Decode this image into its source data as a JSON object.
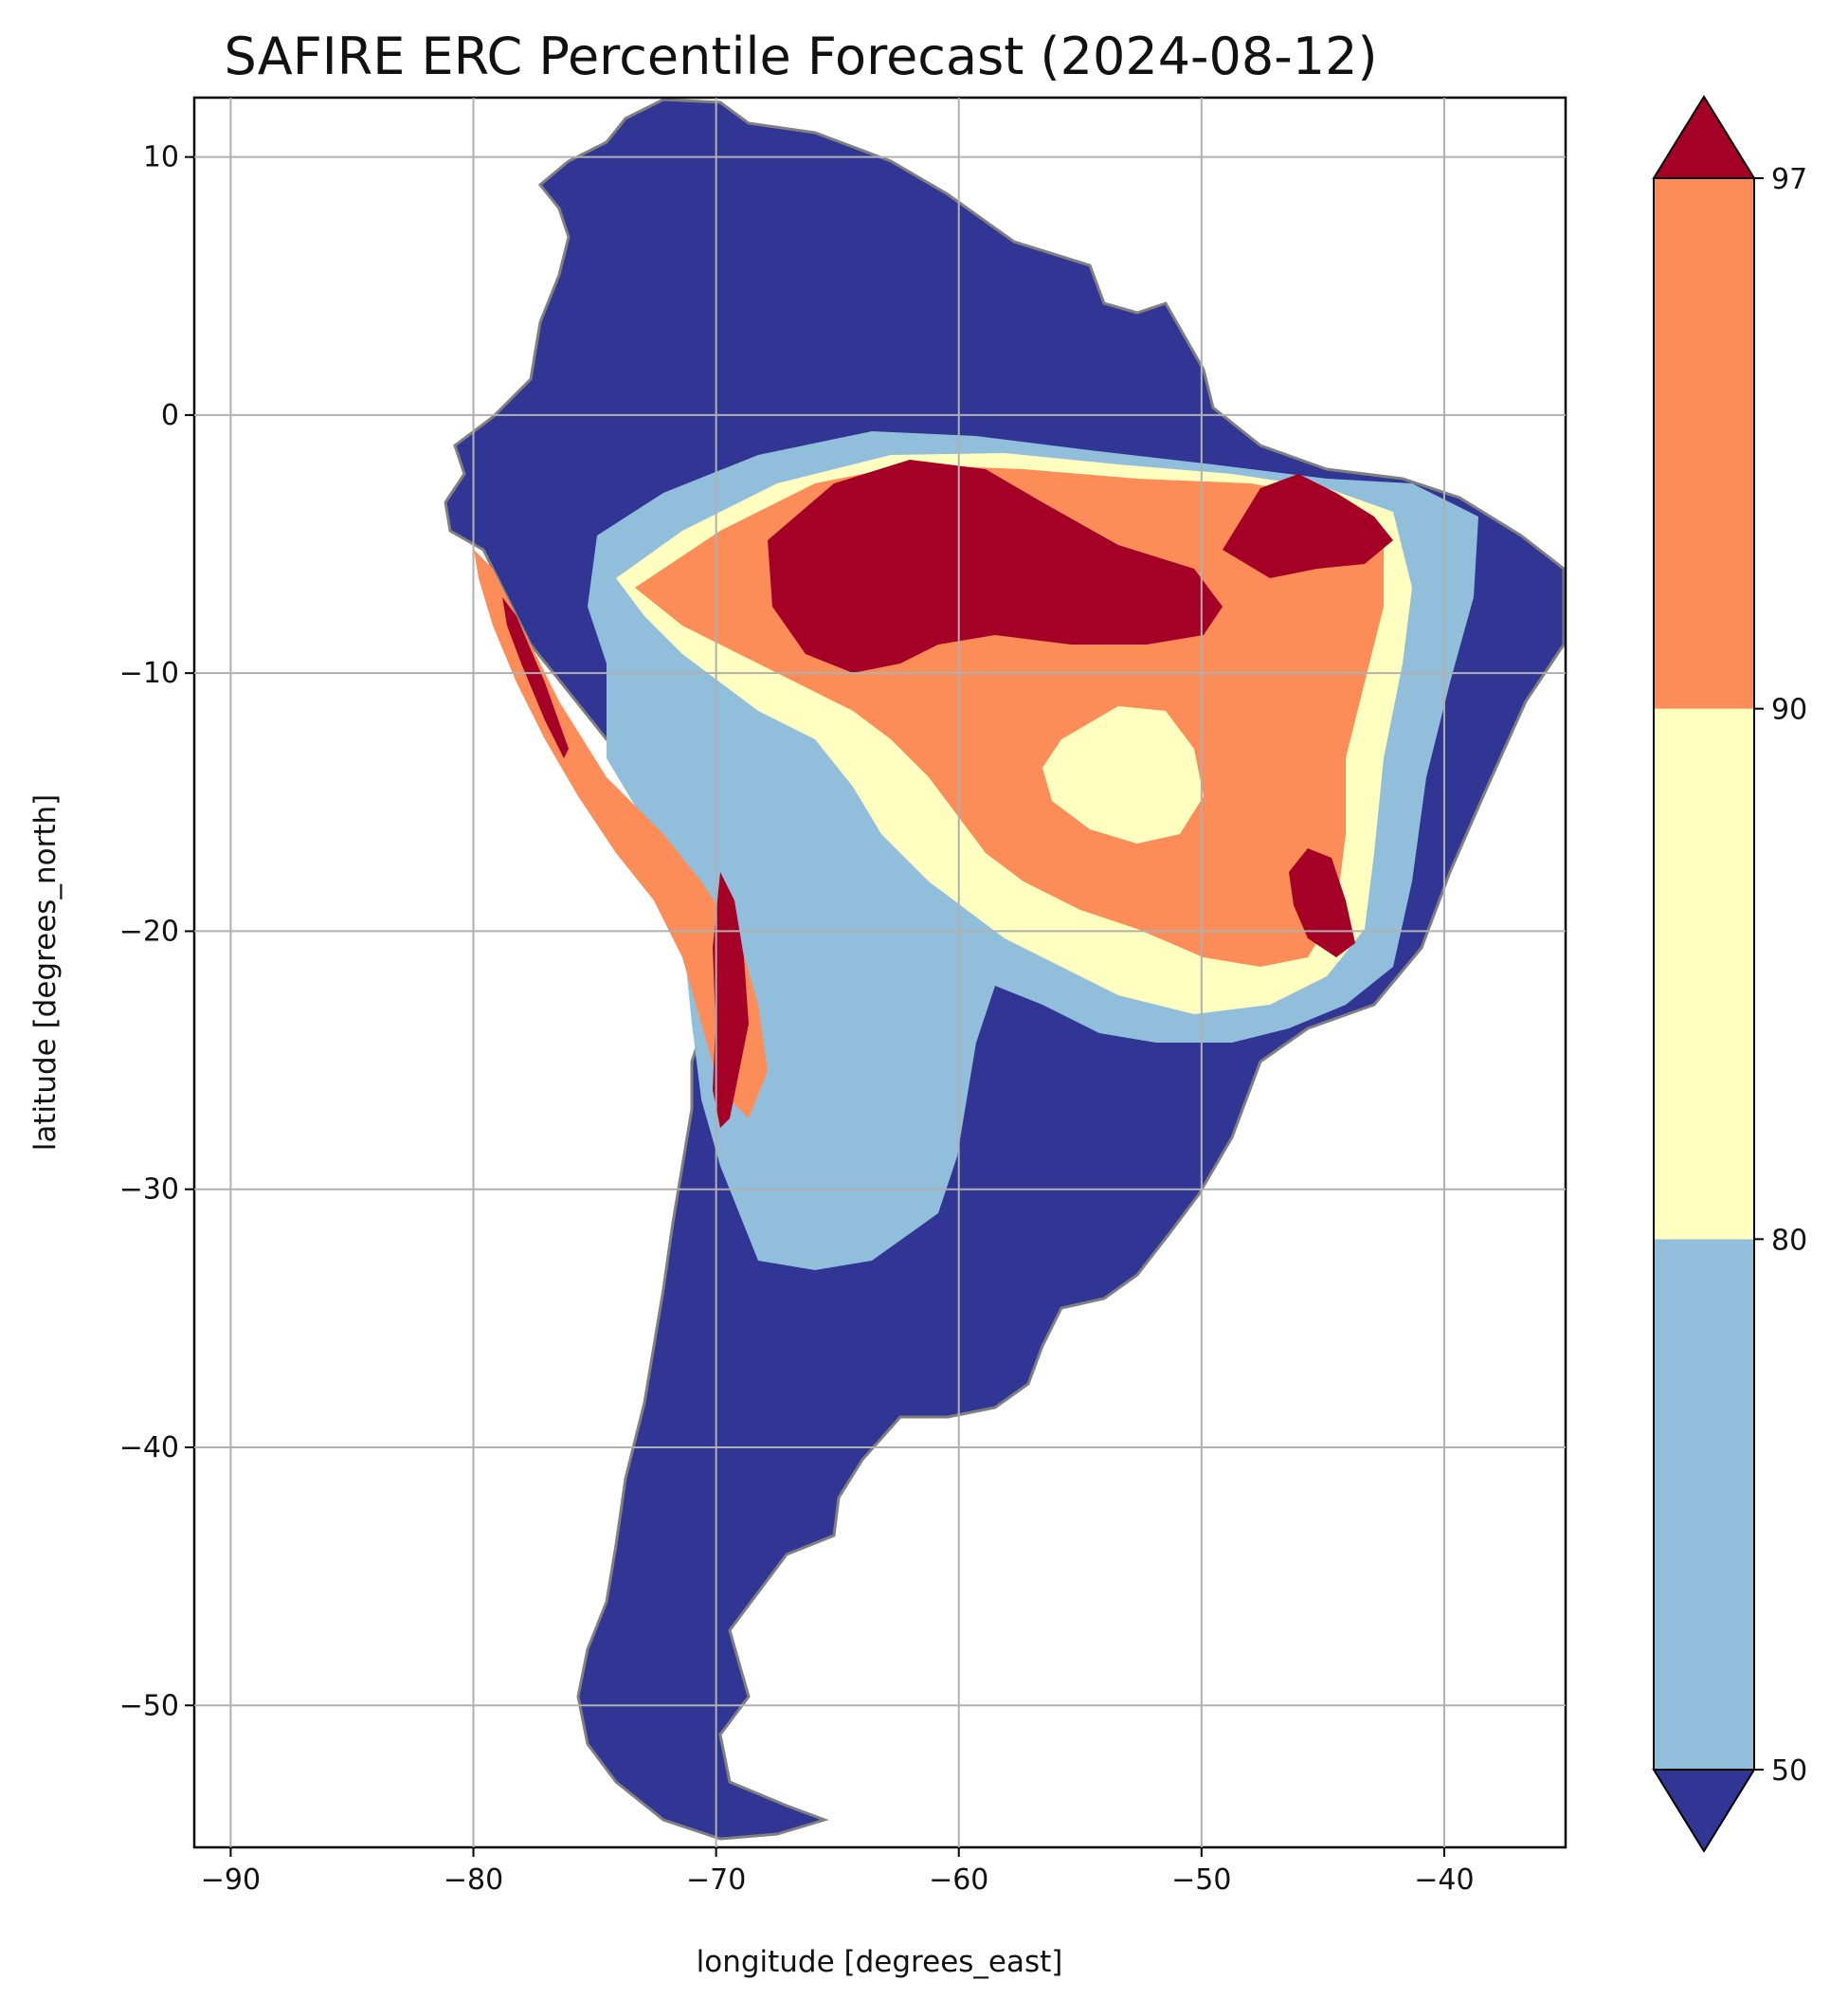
{
  "title": "SAFIRE ERC Percentile Forecast (2024-08-12)",
  "axes": {
    "xlabel": "longitude [degrees_east]",
    "ylabel": "latitude [degrees_north]",
    "xlim": [
      -91.5,
      -35
    ],
    "ylim": [
      -55.5,
      12.3
    ],
    "xticks": [
      -90,
      -80,
      -70,
      -60,
      -50,
      -40
    ],
    "yticks": [
      10,
      0,
      -10,
      -20,
      -30,
      -40,
      -50
    ],
    "xtick_labels": [
      "−90",
      "−80",
      "−70",
      "−60",
      "−50",
      "−40"
    ],
    "ytick_labels": [
      "10",
      "0",
      "−10",
      "−20",
      "−30",
      "−40",
      "−50"
    ],
    "grid": true
  },
  "colorbar": {
    "ticks": [
      "50",
      "80",
      "90",
      "97"
    ],
    "extend": "both",
    "bands": [
      {
        "range": "<50",
        "color": "#313695"
      },
      {
        "range": "50-80",
        "color": "#91bfdb"
      },
      {
        "range": "80-90",
        "color": "#ffffbf"
      },
      {
        "range": "90-97",
        "color": "#fc8d59"
      },
      {
        "range": ">97",
        "color": "#a50026"
      }
    ]
  },
  "colors": {
    "below_50": "#313695",
    "p50_80": "#91bfdb",
    "p80_90": "#ffffbf",
    "p90_97": "#fc8d59",
    "above_97": "#a50026",
    "borders": "#808080",
    "gridlines": "#b0b0b0"
  }
}
